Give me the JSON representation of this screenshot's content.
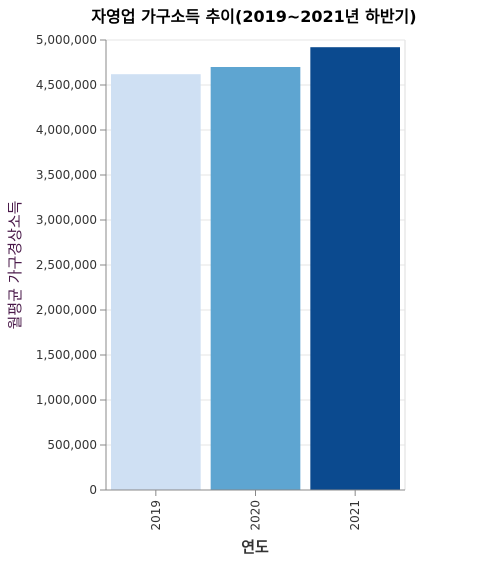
{
  "chart_data": {
    "type": "bar",
    "title": "자영업 가구소득 추이(2019~2021년 하반기)",
    "xlabel": "연도",
    "ylabel": "월평균 가구경상소득",
    "categories": [
      "2019",
      "2020",
      "2021"
    ],
    "values": [
      4620000,
      4700000,
      4920000
    ],
    "colors": [
      "#cfe0f3",
      "#5ea5d1",
      "#0b4a8f"
    ],
    "ylim": [
      0,
      5000000
    ],
    "yticks": [
      0,
      500000,
      1000000,
      1500000,
      2000000,
      2500000,
      3000000,
      3500000,
      4000000,
      4500000,
      5000000
    ],
    "ytick_labels": [
      "0",
      "500,000",
      "1,000,000",
      "1,500,000",
      "2,000,000",
      "2,500,000",
      "3,000,000",
      "3,500,000",
      "4,000,000",
      "4,500,000",
      "5,000,000"
    ],
    "grid": true,
    "legend": "none"
  }
}
